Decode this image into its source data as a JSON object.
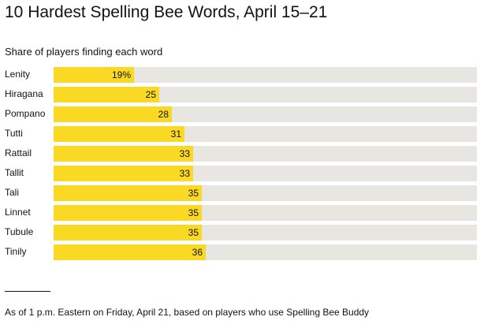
{
  "header": {
    "title": "10 Hardest Spelling Bee Words, April 15–21",
    "subtitle": "Share of players finding each word"
  },
  "footer": {
    "note": "As of 1 p.m. Eastern on Friday, April 21, based on players who use Spelling Bee Buddy"
  },
  "colors": {
    "bar": "#f9d923",
    "track": "#e8e6e1"
  },
  "chart_data": {
    "type": "bar",
    "orientation": "horizontal",
    "title": "10 Hardest Spelling Bee Words, April 15–21",
    "subtitle": "Share of players finding each word",
    "categories": [
      "Lenity",
      "Hiragana",
      "Pompano",
      "Tutti",
      "Rattail",
      "Tallit",
      "Tali",
      "Linnet",
      "Tubule",
      "Tinily"
    ],
    "values": [
      19,
      25,
      28,
      31,
      33,
      33,
      35,
      35,
      35,
      36
    ],
    "value_labels": [
      "19%",
      "25",
      "28",
      "31",
      "33",
      "33",
      "35",
      "35",
      "35",
      "36"
    ],
    "xlim": [
      0,
      100
    ],
    "grid": false,
    "legend": "none"
  }
}
